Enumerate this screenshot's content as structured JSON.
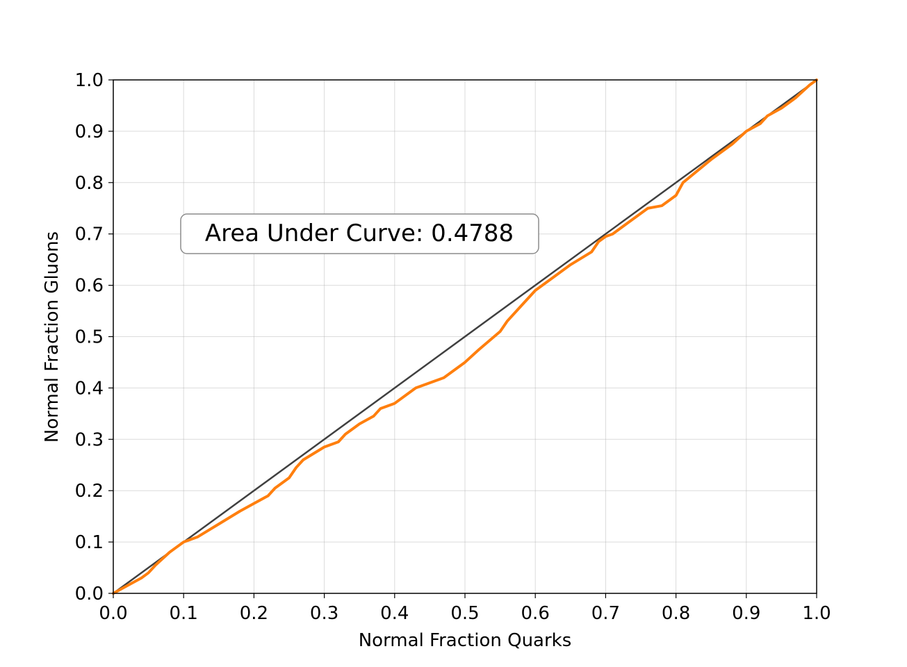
{
  "chart_data": {
    "type": "line",
    "title": "",
    "xlabel": "Normal Fraction Quarks",
    "ylabel": "Normal Fraction Gluons",
    "xlim": [
      0.0,
      1.0
    ],
    "ylim": [
      0.0,
      1.0
    ],
    "xticks": [
      "0.0",
      "0.1",
      "0.2",
      "0.3",
      "0.4",
      "0.5",
      "0.6",
      "0.7",
      "0.8",
      "0.9",
      "1.0"
    ],
    "yticks": [
      "0.0",
      "0.1",
      "0.2",
      "0.3",
      "0.4",
      "0.5",
      "0.6",
      "0.7",
      "0.8",
      "0.9",
      "1.0"
    ],
    "grid": true,
    "annotation": "Area Under Curve: 0.4788",
    "series": [
      {
        "role": "reference",
        "color": "#404040",
        "x": [
          0.0,
          1.0
        ],
        "y": [
          0.0,
          1.0
        ]
      },
      {
        "role": "curve",
        "color": "#ff7f0e",
        "x": [
          0.0,
          0.02,
          0.04,
          0.05,
          0.06,
          0.08,
          0.1,
          0.12,
          0.15,
          0.18,
          0.2,
          0.22,
          0.23,
          0.25,
          0.26,
          0.27,
          0.3,
          0.32,
          0.33,
          0.35,
          0.37,
          0.38,
          0.4,
          0.42,
          0.43,
          0.45,
          0.47,
          0.5,
          0.52,
          0.55,
          0.56,
          0.58,
          0.6,
          0.62,
          0.65,
          0.68,
          0.69,
          0.7,
          0.71,
          0.73,
          0.75,
          0.76,
          0.78,
          0.8,
          0.81,
          0.85,
          0.88,
          0.9,
          0.92,
          0.93,
          0.95,
          0.97,
          0.99,
          1.0
        ],
        "y": [
          0.0,
          0.015,
          0.03,
          0.04,
          0.055,
          0.08,
          0.1,
          0.11,
          0.135,
          0.16,
          0.175,
          0.19,
          0.205,
          0.225,
          0.245,
          0.26,
          0.285,
          0.295,
          0.31,
          0.33,
          0.345,
          0.36,
          0.37,
          0.39,
          0.4,
          0.41,
          0.42,
          0.45,
          0.475,
          0.51,
          0.53,
          0.56,
          0.59,
          0.61,
          0.64,
          0.665,
          0.685,
          0.695,
          0.7,
          0.72,
          0.74,
          0.75,
          0.755,
          0.775,
          0.8,
          0.845,
          0.875,
          0.9,
          0.915,
          0.93,
          0.945,
          0.965,
          0.99,
          1.0
        ]
      }
    ]
  }
}
